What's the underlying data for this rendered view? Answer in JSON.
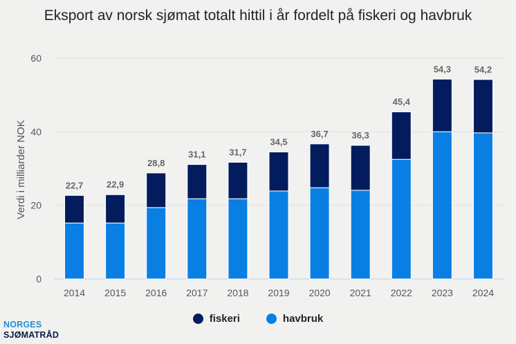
{
  "chart_data": {
    "type": "bar",
    "stacked": true,
    "title": "Eksport av norsk sjømat totalt hittil i år fordelt på fiskeri og havbruk",
    "xlabel": "",
    "ylabel": "Verdi i milliarder NOK",
    "ylim": [
      0,
      60
    ],
    "yticks": [
      0,
      20,
      40,
      60
    ],
    "grid": true,
    "legend_position": "bottom",
    "categories": [
      "2014",
      "2015",
      "2016",
      "2017",
      "2018",
      "2019",
      "2020",
      "2021",
      "2022",
      "2023",
      "2024"
    ],
    "series": [
      {
        "name": "havbruk",
        "color": "#0a7fe3",
        "values": [
          15.2,
          15.2,
          19.4,
          21.8,
          21.8,
          23.9,
          24.8,
          24.1,
          32.5,
          40.0,
          39.7
        ]
      },
      {
        "name": "fiskeri",
        "color": "#021c5e",
        "values": [
          7.5,
          7.7,
          9.4,
          9.3,
          9.9,
          10.6,
          11.9,
          12.2,
          12.9,
          14.3,
          14.5
        ]
      }
    ],
    "totals": [
      "22,7",
      "22,9",
      "28,8",
      "31,1",
      "31,7",
      "34,5",
      "36,7",
      "36,3",
      "45,4",
      "54,3",
      "54,2"
    ]
  },
  "legend": {
    "items": [
      {
        "label": "fiskeri",
        "color": "#021c5e"
      },
      {
        "label": "havbruk",
        "color": "#0a7fe3"
      }
    ]
  },
  "logo": {
    "line1": "NORGES",
    "line2": "SJØMATRÅD"
  }
}
